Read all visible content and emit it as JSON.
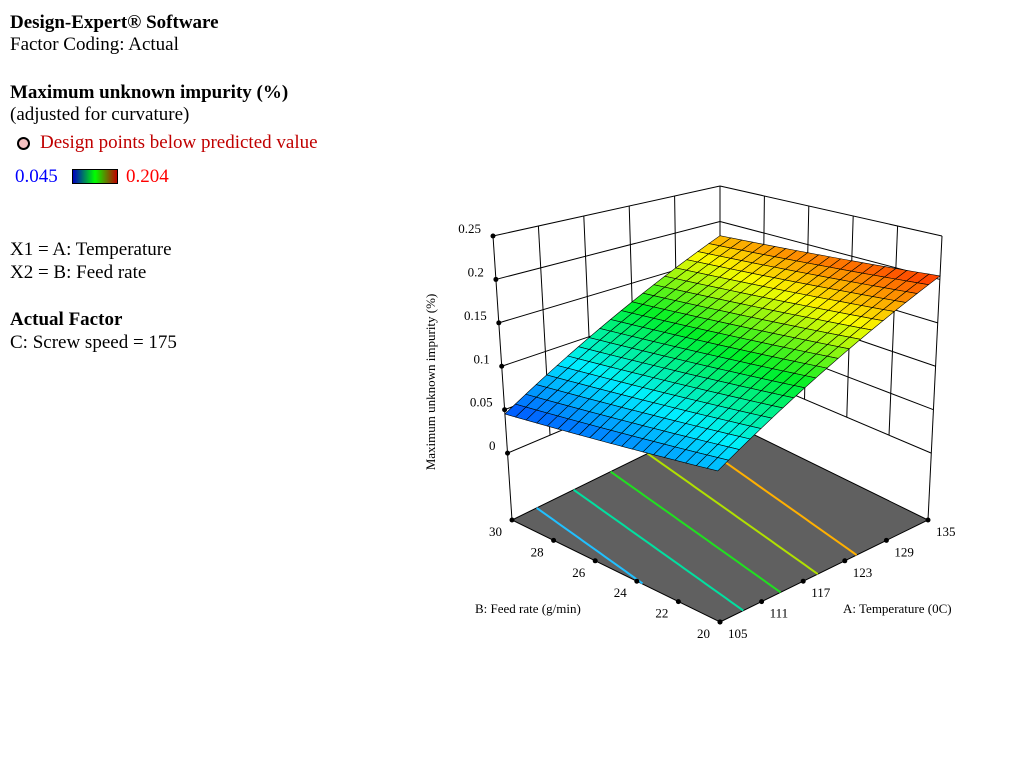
{
  "info": {
    "software": "Design-Expert® Software",
    "coding": "Factor Coding: Actual",
    "response": "Maximum unknown impurity (%)",
    "response_note": "(adjusted for curvature)",
    "design_points_legend": "Design points below predicted value",
    "color_min": "0.045",
    "color_max": "0.204",
    "x1": "X1 = A: Temperature",
    "x2": "X2 = B: Feed rate",
    "actual_factor_title": "Actual Factor",
    "actual_factor": "C: Screw speed = 175"
  },
  "colors": {
    "legend_text": "#c00000",
    "min": "#0000ff",
    "max": "#ff0000",
    "floor": "#606060"
  },
  "chart_data": {
    "type": "surface",
    "zlabel": "Maximum unknown impurity (%)",
    "xlabel": "A: Temperature (0C)",
    "ylabel": "B: Feed rate (g/min)",
    "x_ticks": [
      "105",
      "111",
      "117",
      "123",
      "129",
      "135"
    ],
    "y_ticks": [
      "20",
      "22",
      "24",
      "26",
      "28",
      "30"
    ],
    "z_ticks": [
      "0",
      "0.05",
      "0.1",
      "0.15",
      "0.2",
      "0.25"
    ],
    "xlim": [
      105,
      135
    ],
    "ylim": [
      20,
      30
    ],
    "zlim": [
      0,
      0.25
    ],
    "corner_values": {
      "A105_B20": 0.07,
      "A105_B30": 0.045,
      "A135_B20": 0.204,
      "A135_B30": 0.18
    },
    "contour_levels": [
      0.061,
      0.085,
      0.109,
      0.133,
      0.158
    ],
    "contour_colors": [
      "#20c0ff",
      "#00e0a0",
      "#20e020",
      "#b0e000",
      "#ffb000"
    ],
    "color_range": [
      0.045,
      0.204
    ]
  }
}
